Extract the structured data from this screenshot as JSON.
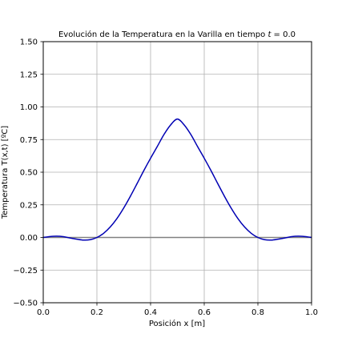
{
  "chart_data": {
    "type": "line",
    "title": "Evolución de la Temperatura en la Varilla en tiempo",
    "title_var": "t",
    "title_value": "0.0",
    "xlabel": "Posición x [m]",
    "ylabel": "Temperatura T(x,t) [ºC]",
    "xlim": [
      0.0,
      1.0
    ],
    "ylim": [
      -0.5,
      1.5
    ],
    "xticks": [
      0.0,
      0.2,
      0.4,
      0.6,
      0.8,
      1.0
    ],
    "xtick_labels": [
      "0.0",
      "0.2",
      "0.4",
      "0.6",
      "0.8",
      "1.0"
    ],
    "yticks": [
      -0.5,
      -0.25,
      0.0,
      0.25,
      0.5,
      0.75,
      1.0,
      1.25,
      1.5
    ],
    "ytick_labels": [
      "−0.50",
      "−0.25",
      "0.00",
      "0.25",
      "0.50",
      "0.75",
      "1.00",
      "1.25",
      "1.50"
    ],
    "grid": true,
    "baseline_y": 0.0,
    "colors": {
      "series": "#0000b3",
      "baseline": "#808080",
      "grid": "#b0b0b0",
      "frame": "#000000"
    },
    "series": [
      {
        "x": [
          0.0,
          0.025,
          0.05,
          0.075,
          0.1,
          0.125,
          0.15,
          0.175,
          0.2,
          0.225,
          0.25,
          0.275,
          0.3,
          0.325,
          0.35,
          0.375,
          0.4,
          0.425,
          0.45,
          0.475,
          0.5,
          0.525,
          0.55,
          0.575,
          0.6,
          0.625,
          0.65,
          0.675,
          0.7,
          0.725,
          0.75,
          0.775,
          0.8,
          0.825,
          0.85,
          0.875,
          0.9,
          0.925,
          0.95,
          0.975,
          1.0
        ],
        "y": [
          0.0,
          0.007,
          0.01,
          0.006,
          -0.004,
          -0.013,
          -0.02,
          -0.017,
          0.0,
          0.032,
          0.081,
          0.146,
          0.226,
          0.317,
          0.414,
          0.513,
          0.607,
          0.697,
          0.789,
          0.863,
          0.907,
          0.863,
          0.789,
          0.697,
          0.607,
          0.513,
          0.414,
          0.317,
          0.226,
          0.146,
          0.081,
          0.032,
          0.0,
          -0.017,
          -0.02,
          -0.013,
          -0.004,
          0.006,
          0.01,
          0.007,
          0.0
        ]
      }
    ]
  }
}
